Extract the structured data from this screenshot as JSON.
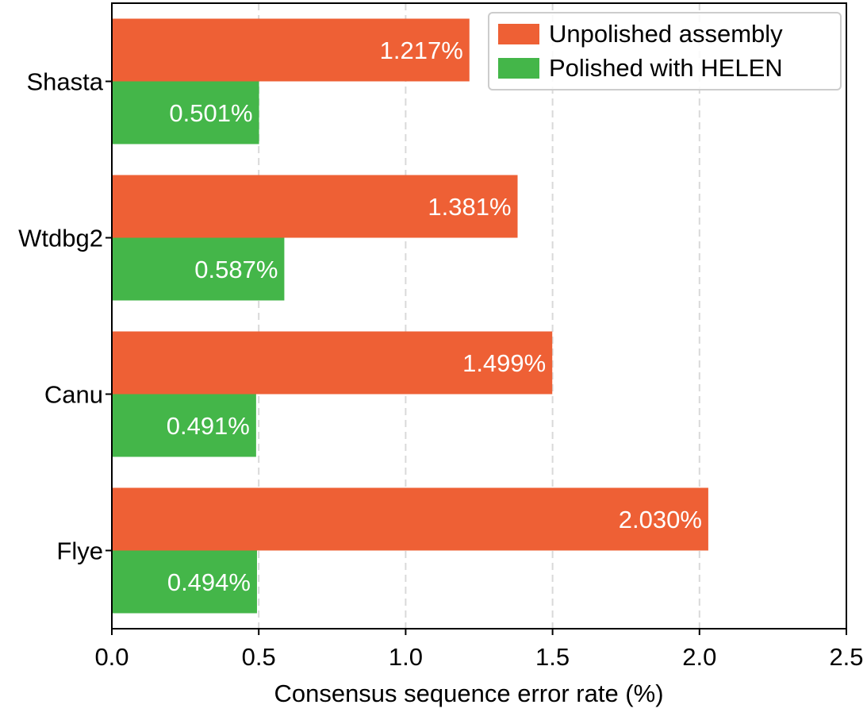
{
  "chart_data": {
    "type": "bar",
    "orientation": "horizontal",
    "categories": [
      "Shasta",
      "Wtdbg2",
      "Canu",
      "Flye"
    ],
    "series": [
      {
        "name": "Unpolished assembly",
        "color": "#EE6035",
        "values": [
          1.217,
          1.381,
          1.499,
          2.03
        ],
        "labels": [
          "1.217%",
          "1.381%",
          "1.499%",
          "2.030%"
        ]
      },
      {
        "name": "Polished with HELEN",
        "color": "#44B649",
        "values": [
          0.501,
          0.587,
          0.491,
          0.494
        ],
        "labels": [
          "0.501%",
          "0.587%",
          "0.491%",
          "0.494%"
        ]
      }
    ],
    "xlabel": "Consensus sequence error rate (%)",
    "ylabel": "",
    "xlim": [
      0,
      2.5
    ],
    "xticks": [
      0.0,
      0.5,
      1.0,
      1.5,
      2.0,
      2.5
    ],
    "xtick_labels": [
      "0.0",
      "0.5",
      "1.0",
      "1.5",
      "2.0",
      "2.5"
    ],
    "grid": "x-dashed",
    "legend_position": "top-right"
  }
}
